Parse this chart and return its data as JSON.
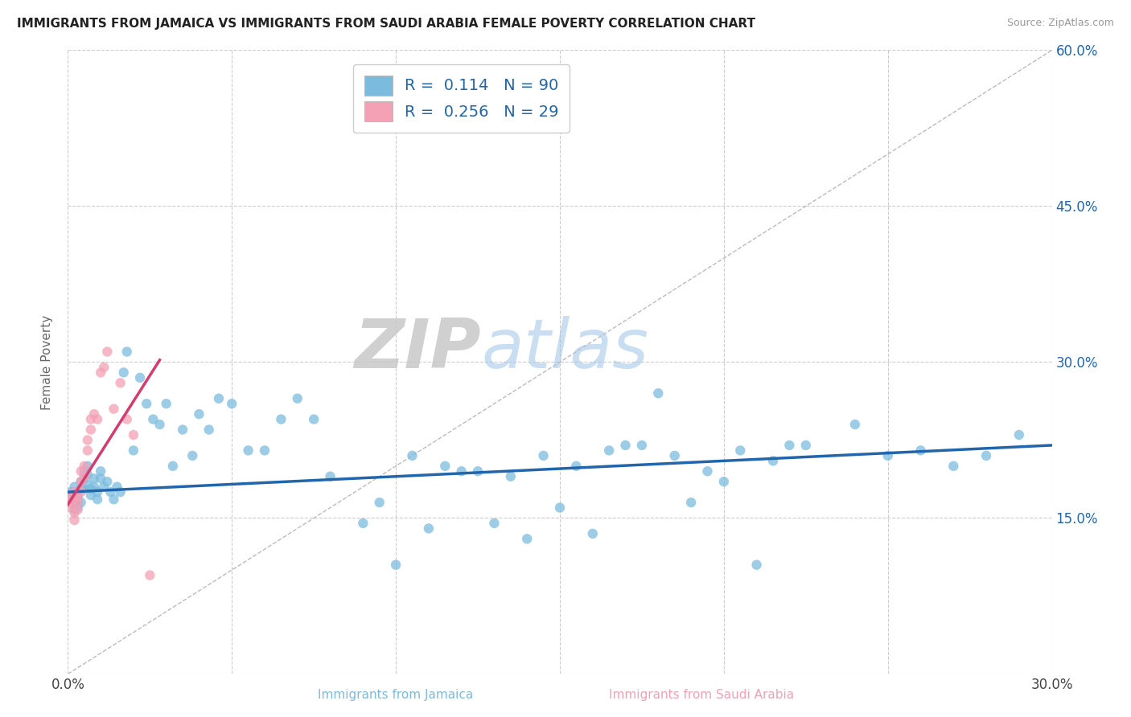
{
  "title": "IMMIGRANTS FROM JAMAICA VS IMMIGRANTS FROM SAUDI ARABIA FEMALE POVERTY CORRELATION CHART",
  "source": "Source: ZipAtlas.com",
  "xlabel_label": "Immigrants from Jamaica",
  "xlabel_label2": "Immigrants from Saudi Arabia",
  "ylabel": "Female Poverty",
  "xlim": [
    0.0,
    0.3
  ],
  "ylim": [
    0.0,
    0.6
  ],
  "xticks": [
    0.0,
    0.05,
    0.1,
    0.15,
    0.2,
    0.25,
    0.3
  ],
  "yticks": [
    0.0,
    0.15,
    0.3,
    0.45,
    0.6
  ],
  "jamaica_color": "#7bbcde",
  "saudi_color": "#f4a0b5",
  "jamaica_trendline_color": "#2166ac",
  "saudi_trendline_color": "#d63b6e",
  "jamaica_R": 0.114,
  "jamaica_N": 90,
  "saudi_R": 0.256,
  "saudi_N": 29,
  "background_color": "#ffffff",
  "grid_color": "#cccccc",
  "watermark_zip": "ZIP",
  "watermark_atlas": "atlas",
  "jamaica_x": [
    0.001,
    0.001,
    0.001,
    0.002,
    0.002,
    0.002,
    0.002,
    0.002,
    0.003,
    0.003,
    0.003,
    0.003,
    0.004,
    0.004,
    0.004,
    0.005,
    0.005,
    0.005,
    0.006,
    0.006,
    0.006,
    0.007,
    0.007,
    0.008,
    0.008,
    0.009,
    0.009,
    0.01,
    0.01,
    0.011,
    0.012,
    0.013,
    0.014,
    0.015,
    0.016,
    0.017,
    0.018,
    0.02,
    0.022,
    0.024,
    0.026,
    0.028,
    0.03,
    0.032,
    0.035,
    0.038,
    0.04,
    0.043,
    0.046,
    0.05,
    0.055,
    0.06,
    0.065,
    0.07,
    0.075,
    0.08,
    0.09,
    0.1,
    0.11,
    0.12,
    0.13,
    0.14,
    0.15,
    0.16,
    0.17,
    0.18,
    0.19,
    0.2,
    0.21,
    0.22,
    0.095,
    0.105,
    0.115,
    0.125,
    0.135,
    0.145,
    0.155,
    0.165,
    0.175,
    0.185,
    0.195,
    0.205,
    0.215,
    0.225,
    0.24,
    0.25,
    0.26,
    0.27,
    0.28,
    0.29
  ],
  "jamaica_y": [
    0.17,
    0.175,
    0.165,
    0.18,
    0.172,
    0.168,
    0.162,
    0.158,
    0.175,
    0.17,
    0.165,
    0.16,
    0.185,
    0.178,
    0.165,
    0.195,
    0.188,
    0.178,
    0.2,
    0.192,
    0.182,
    0.178,
    0.172,
    0.188,
    0.18,
    0.175,
    0.168,
    0.195,
    0.188,
    0.18,
    0.185,
    0.175,
    0.168,
    0.18,
    0.175,
    0.29,
    0.31,
    0.215,
    0.285,
    0.26,
    0.245,
    0.24,
    0.26,
    0.2,
    0.235,
    0.21,
    0.25,
    0.235,
    0.265,
    0.26,
    0.215,
    0.215,
    0.245,
    0.265,
    0.245,
    0.19,
    0.145,
    0.105,
    0.14,
    0.195,
    0.145,
    0.13,
    0.16,
    0.135,
    0.22,
    0.27,
    0.165,
    0.185,
    0.105,
    0.22,
    0.165,
    0.21,
    0.2,
    0.195,
    0.19,
    0.21,
    0.2,
    0.215,
    0.22,
    0.21,
    0.195,
    0.215,
    0.205,
    0.22,
    0.24,
    0.21,
    0.215,
    0.2,
    0.21,
    0.23
  ],
  "saudi_x": [
    0.001,
    0.001,
    0.001,
    0.002,
    0.002,
    0.002,
    0.002,
    0.003,
    0.003,
    0.003,
    0.004,
    0.004,
    0.004,
    0.005,
    0.005,
    0.006,
    0.006,
    0.007,
    0.007,
    0.008,
    0.009,
    0.01,
    0.011,
    0.012,
    0.014,
    0.016,
    0.018,
    0.02,
    0.025
  ],
  "saudi_y": [
    0.165,
    0.17,
    0.16,
    0.175,
    0.168,
    0.155,
    0.148,
    0.17,
    0.165,
    0.158,
    0.195,
    0.185,
    0.175,
    0.2,
    0.19,
    0.225,
    0.215,
    0.245,
    0.235,
    0.25,
    0.245,
    0.29,
    0.295,
    0.31,
    0.255,
    0.28,
    0.245,
    0.23,
    0.095
  ],
  "saudi_trendline_x": [
    0.0,
    0.028
  ],
  "saudi_trendline_y": [
    0.163,
    0.302
  ]
}
